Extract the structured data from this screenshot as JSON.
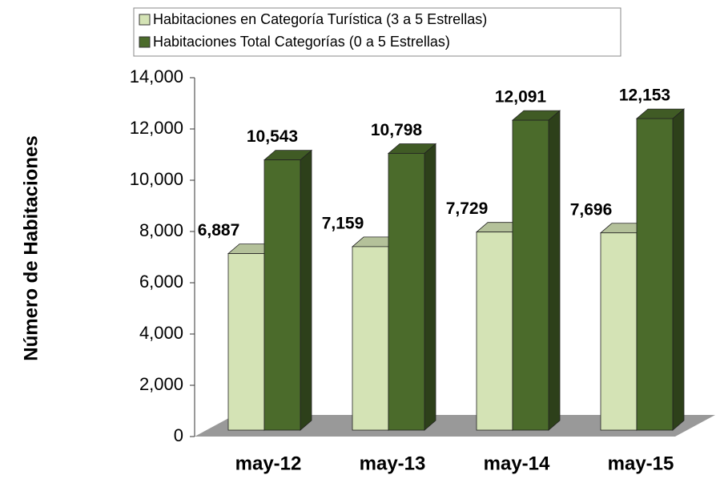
{
  "chart_data": {
    "type": "bar3d",
    "y_label": "Número de Habitaciones",
    "categories": [
      "may-12",
      "may-13",
      "may-14",
      "may-15"
    ],
    "series": [
      {
        "name": "Habitaciones en Categoría Turística (3 a 5 Estrellas)",
        "color": "#d4e3b5",
        "values": [
          6887,
          7159,
          7729,
          7696
        ],
        "value_labels": [
          "6,887",
          "7,159",
          "7,729",
          "7,696"
        ]
      },
      {
        "name": "Habitaciones Total Categorías (0 a 5 Estrellas)",
        "color": "#4b6b2b",
        "values": [
          10543,
          10798,
          12091,
          12153
        ],
        "value_labels": [
          "10,543",
          "10,798",
          "12,091",
          "12,153"
        ]
      }
    ],
    "ylim": [
      0,
      14000
    ],
    "yticks": [
      0,
      {
        "value": 2000,
        "label": "2,000"
      },
      {
        "value": 4000,
        "label": "4,000"
      },
      {
        "value": 6000,
        "label": "6,000"
      },
      {
        "value": 8000,
        "label": "8,000"
      },
      {
        "value": 10000,
        "label": "10,000"
      },
      {
        "value": 12000,
        "label": "12,000"
      },
      {
        "value": 14000,
        "label": "14,000"
      }
    ],
    "legend": "top"
  }
}
